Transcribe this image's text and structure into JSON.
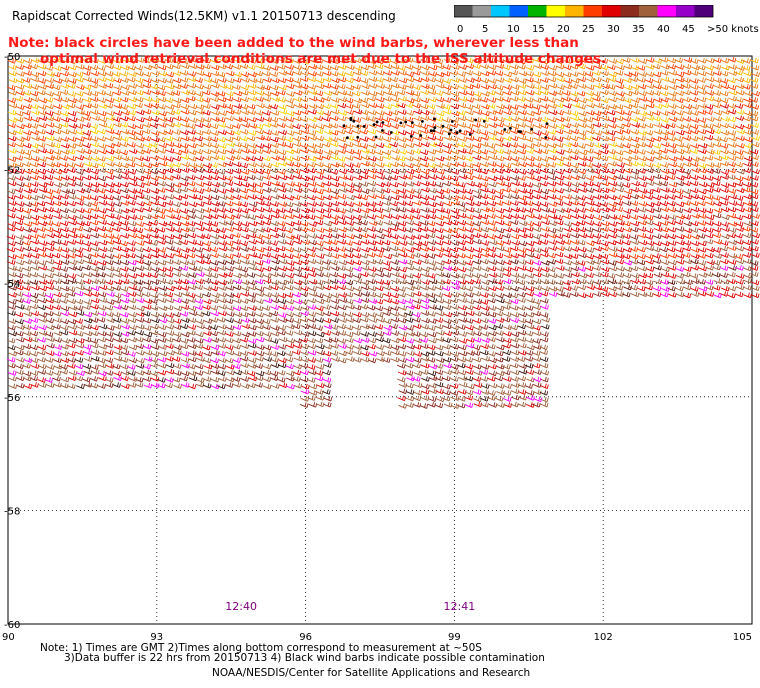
{
  "title": "Rapidscat Corrected Winds(12.5KM) v1.1 20150713 descending",
  "note": {
    "line1": "Note: black circles have been added to the wind barbs, wherever less than",
    "line2": "optimal wind retrieval conditions are met due to the ISS altitude changes."
  },
  "colorbar": {
    "labels": [
      "0",
      "5",
      "10",
      "15",
      "20",
      "25",
      "30",
      "35",
      "40",
      "45",
      ">50 knots"
    ],
    "colors": [
      "#555555",
      "#9a9a9a",
      "#00c8ff",
      "#0060ff",
      "#00b400",
      "#ffff00",
      "#ffb400",
      "#ff3c00",
      "#e00000",
      "#8c2a1e",
      "#a0603c",
      "#ff00ff",
      "#9600c8",
      "#500078"
    ]
  },
  "axes": {
    "x_ticks": [
      "90",
      "93",
      "96",
      "99",
      "102",
      "105"
    ],
    "x_values": [
      90,
      93,
      96,
      99,
      102,
      105
    ],
    "y_ticks": [
      "-50",
      "-52",
      "-54",
      "-56",
      "-58",
      "-60"
    ],
    "y_values": [
      -50,
      -52,
      -54,
      -56,
      -58,
      -60
    ],
    "x_range": [
      90,
      105
    ],
    "y_range": [
      -60,
      -50
    ],
    "grid": "dotted"
  },
  "time_labels": [
    {
      "text": "12:40",
      "lon": 94.7
    },
    {
      "text": "12:41",
      "lon": 99.1
    }
  ],
  "footer": {
    "line1": "Note: 1) Times are GMT 2)Times along bottom correspond to measurement at ~50S",
    "line2": "3)Data buffer is 22 hrs from 20150713 4) Black wind barbs indicate possible contamination",
    "line3": "NOAA/NESDIS/Center for Satellite Applications and Research"
  }
}
